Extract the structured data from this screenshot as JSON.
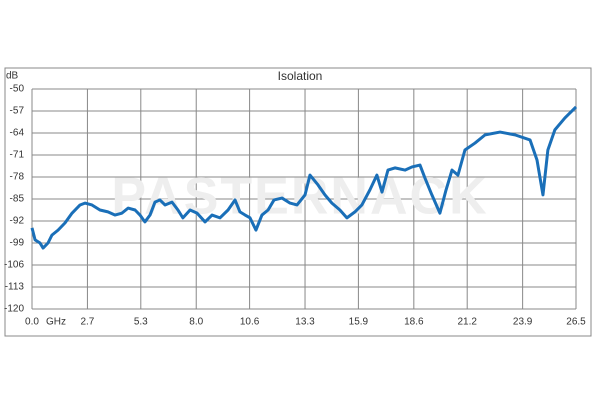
{
  "chart_data": {
    "type": "line",
    "title": "Isolation",
    "watermark": "PASTERNACK",
    "x_label": "GHz",
    "y_label": "dB",
    "xlim": [
      0,
      26.5
    ],
    "ylim": [
      -120,
      -50
    ],
    "xticks": [
      {
        "value": 0,
        "label": "0.0"
      },
      2.7,
      5.3,
      {
        "value": 8,
        "label": "8.0"
      },
      10.6,
      13.3,
      15.9,
      18.6,
      21.2,
      23.9,
      26.5
    ],
    "yticks": [
      -50,
      -57,
      -64,
      -71,
      -78,
      -85,
      -92,
      -99,
      -106,
      -113,
      -120
    ],
    "grid": true,
    "series": [
      {
        "color": "#1a6fb8",
        "x": [
          0,
          0.15,
          0.39,
          0.54,
          0.78,
          0.97,
          1.27,
          1.61,
          1.95,
          2.34,
          2.58,
          2.92,
          3.31,
          3.7,
          4.04,
          4.38,
          4.68,
          5.02,
          5.26,
          5.5,
          5.75,
          5.99,
          6.23,
          6.48,
          6.82,
          7.11,
          7.35,
          7.7,
          8.04,
          8.43,
          8.77,
          9.16,
          9.55,
          9.89,
          10.13,
          10.38,
          10.62,
          10.91,
          11.2,
          11.5,
          11.79,
          12.18,
          12.57,
          12.91,
          13.3,
          13.54,
          13.93,
          14.27,
          14.61,
          15.0,
          15.34,
          15.73,
          16.07,
          16.46,
          16.8,
          17.05,
          17.34,
          17.68,
          18.17,
          18.51,
          18.9,
          19.14,
          19.48,
          19.87,
          20.17,
          20.46,
          20.75,
          21.09,
          21.58,
          22.07,
          22.8,
          23.53,
          24.26,
          24.6,
          24.89,
          25.13,
          25.47,
          25.96,
          26.5
        ],
        "values": [
          -94.2,
          -98,
          -99,
          -100.6,
          -99,
          -96.5,
          -94.9,
          -92.6,
          -89.5,
          -86.9,
          -86.3,
          -86.9,
          -88.5,
          -89.1,
          -90.1,
          -89.5,
          -87.9,
          -88.5,
          -90.1,
          -92.3,
          -90.1,
          -86,
          -85.3,
          -86.9,
          -86,
          -88.5,
          -91,
          -88.5,
          -89.5,
          -92.3,
          -90.1,
          -91,
          -88.5,
          -85.3,
          -89.1,
          -90.1,
          -91,
          -94.9,
          -90.1,
          -88.5,
          -85.3,
          -84.7,
          -86.3,
          -86.9,
          -83.7,
          -77.4,
          -80.5,
          -83.7,
          -86.3,
          -88.5,
          -91,
          -89.1,
          -86.9,
          -82.1,
          -77.4,
          -82.8,
          -75.8,
          -75.1,
          -75.8,
          -74.8,
          -74.2,
          -78.3,
          -83.7,
          -89.5,
          -82.1,
          -75.8,
          -77.4,
          -69.4,
          -67.2,
          -64.6,
          -63.7,
          -64.6,
          -66.2,
          -72.6,
          -83.7,
          -69.4,
          -63,
          -59.2,
          -55.7
        ]
      }
    ]
  }
}
